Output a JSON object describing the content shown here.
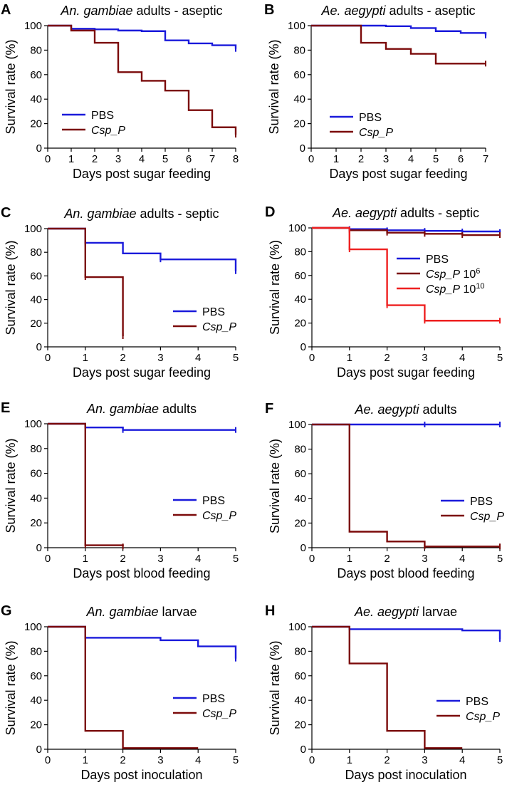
{
  "colors": {
    "PBS": "#1a1adb",
    "Csp_P": "#7b0a0a",
    "Csp_P_1e10": "#ee2020",
    "axis": "#000000"
  },
  "chart_data": [
    {
      "panel": "A",
      "type": "line",
      "step": true,
      "title": {
        "italic": "An. gambiae",
        "plain": " adults - aseptic"
      },
      "xlabel": "Days post sugar feeding",
      "ylabel": "Survival rate (%)",
      "xlim": [
        0,
        8
      ],
      "ylim": [
        0,
        100
      ],
      "xticks": [
        "0",
        "1",
        "2",
        "3",
        "4",
        "5",
        "6",
        "7",
        "8"
      ],
      "yticks": [
        "0",
        "20",
        "40",
        "60",
        "80",
        "100"
      ],
      "legend_position": "bottom-left",
      "series": [
        {
          "name": "PBS",
          "color": "PBS",
          "x": [
            0,
            1,
            2,
            3,
            4,
            5,
            6,
            7,
            8
          ],
          "y": [
            100,
            97.5,
            97,
            96,
            95.5,
            88,
            85.5,
            84,
            81
          ],
          "censor": [
            8
          ]
        },
        {
          "name": "Csp_P",
          "label_italic": "Csp_P",
          "label_plain": "",
          "color": "Csp_P",
          "x": [
            0,
            1,
            2,
            3,
            4,
            5,
            6,
            7,
            8
          ],
          "y": [
            100,
            96,
            86,
            62,
            55,
            47,
            31,
            17,
            11
          ],
          "censor": [
            8
          ]
        }
      ]
    },
    {
      "panel": "B",
      "type": "line",
      "step": true,
      "title": {
        "italic": "Ae. aegypti",
        "plain": " adults - aseptic"
      },
      "xlabel": "Days post sugar feeding",
      "ylabel": "Survival rate (%)",
      "xlim": [
        0,
        7
      ],
      "ylim": [
        0,
        100
      ],
      "xticks": [
        "0",
        "1",
        "2",
        "3",
        "4",
        "5",
        "6",
        "7"
      ],
      "yticks": [
        "0",
        "20",
        "40",
        "60",
        "80",
        "100"
      ],
      "legend_position": "bottom-left",
      "series": [
        {
          "name": "PBS",
          "color": "PBS",
          "x": [
            0,
            3,
            4,
            5,
            6,
            7
          ],
          "y": [
            100,
            99.5,
            98,
            95.5,
            94,
            92
          ],
          "censor": [
            7
          ]
        },
        {
          "name": "Csp_P",
          "label_italic": "Csp_P",
          "label_plain": "",
          "color": "Csp_P",
          "x": [
            0,
            2,
            3,
            4,
            5,
            7
          ],
          "y": [
            100,
            86,
            81,
            77,
            69,
            69
          ],
          "censor": [
            7
          ]
        }
      ]
    },
    {
      "panel": "C",
      "type": "line",
      "step": true,
      "title": {
        "italic": "An. gambiae",
        "plain": " adults - septic"
      },
      "xlabel": "Days post sugar feeding",
      "ylabel": "Survival rate (%)",
      "xlim": [
        0,
        5
      ],
      "ylim": [
        0,
        100
      ],
      "xticks": [
        "0",
        "1",
        "2",
        "3",
        "4",
        "5"
      ],
      "yticks": [
        "0",
        "20",
        "40",
        "60",
        "80",
        "100"
      ],
      "legend_position": "bottom-right",
      "series": [
        {
          "name": "PBS",
          "color": "PBS",
          "x": [
            0,
            1,
            2,
            3,
            5
          ],
          "y": [
            100,
            88,
            79,
            74,
            64
          ],
          "censor": [
            1,
            3,
            5
          ]
        },
        {
          "name": "Csp_P",
          "label_italic": "Csp_P",
          "label_plain": "",
          "color": "Csp_P",
          "x": [
            0,
            1,
            2
          ],
          "y": [
            100,
            59,
            9
          ],
          "censor": [
            1,
            2
          ]
        }
      ]
    },
    {
      "panel": "D",
      "type": "line",
      "step": true,
      "title": {
        "italic": "Ae. aegypti",
        "plain": " adults - septic"
      },
      "xlabel": "Days post sugar feeding",
      "ylabel": "Survival rate (%)",
      "xlim": [
        0,
        5
      ],
      "ylim": [
        0,
        100
      ],
      "xticks": [
        "0",
        "1",
        "2",
        "3",
        "4",
        "5"
      ],
      "yticks": [
        "0",
        "20",
        "40",
        "60",
        "80",
        "100"
      ],
      "legend_position": "center-right",
      "series": [
        {
          "name": "PBS",
          "color": "PBS",
          "x": [
            0,
            1,
            2,
            3,
            4,
            5
          ],
          "y": [
            100,
            99,
            98,
            97.5,
            97,
            96.5
          ],
          "censor": [
            1,
            2,
            3,
            4,
            5
          ]
        },
        {
          "name": "Csp_P 10^6",
          "label_italic": "Csp_P",
          "label_plain": " 10",
          "label_sup": "6",
          "color": "Csp_P",
          "x": [
            0,
            1,
            2,
            3,
            4,
            5
          ],
          "y": [
            100,
            98,
            96,
            95,
            94,
            94
          ],
          "censor": [
            1,
            2,
            3,
            4,
            5
          ]
        },
        {
          "name": "Csp_P 10^10",
          "label_italic": "Csp_P",
          "label_plain": " 10",
          "label_sup": "10",
          "color": "Csp_P_1e10",
          "x": [
            0,
            1,
            2,
            3,
            5
          ],
          "y": [
            100,
            82,
            35,
            22,
            22
          ],
          "censor": [
            1,
            2,
            3,
            5
          ]
        }
      ]
    },
    {
      "panel": "E",
      "type": "line",
      "step": true,
      "title": {
        "italic": "An. gambiae",
        "plain": " adults"
      },
      "xlabel": "Days post blood feeding",
      "ylabel": "Survival rate (%)",
      "xlim": [
        0,
        5
      ],
      "ylim": [
        0,
        100
      ],
      "xticks": [
        "0",
        "1",
        "2",
        "3",
        "4",
        "5"
      ],
      "yticks": [
        "0",
        "20",
        "40",
        "60",
        "80",
        "100"
      ],
      "legend_position": "bottom-right",
      "series": [
        {
          "name": "PBS",
          "color": "PBS",
          "x": [
            0,
            1,
            2,
            5
          ],
          "y": [
            100,
            97,
            95,
            95
          ],
          "censor": [
            2,
            5
          ]
        },
        {
          "name": "Csp_P",
          "label_italic": "Csp_P",
          "label_plain": "",
          "color": "Csp_P",
          "x": [
            0,
            1,
            2
          ],
          "y": [
            100,
            2,
            1
          ],
          "censor": [
            1,
            2
          ]
        }
      ]
    },
    {
      "panel": "F",
      "type": "line",
      "step": true,
      "title": {
        "italic": "Ae. aegypti",
        "plain": " adults"
      },
      "xlabel": "Days post blood feeding",
      "ylabel": "Survival rate (%)",
      "xlim": [
        0,
        5
      ],
      "ylim": [
        0,
        100
      ],
      "xticks": [
        "0",
        "1",
        "2",
        "3",
        "4",
        "5"
      ],
      "yticks": [
        "0",
        "20",
        "40",
        "60",
        "80",
        "100"
      ],
      "legend_position": "center-right",
      "series": [
        {
          "name": "PBS",
          "color": "PBS",
          "x": [
            0,
            5
          ],
          "y": [
            100,
            100
          ],
          "censor": [
            3,
            5
          ]
        },
        {
          "name": "Csp_P",
          "label_italic": "Csp_P",
          "label_plain": "",
          "color": "Csp_P",
          "x": [
            0,
            1,
            2,
            3,
            5
          ],
          "y": [
            100,
            13,
            5,
            1,
            1
          ],
          "censor": [
            3,
            5
          ]
        }
      ]
    },
    {
      "panel": "G",
      "type": "line",
      "step": true,
      "title": {
        "italic": "An. gambiae",
        "plain": " larvae"
      },
      "xlabel": "Days post inoculation",
      "ylabel": "Survival rate (%)",
      "xlim": [
        0,
        5
      ],
      "ylim": [
        0,
        100
      ],
      "xticks": [
        "0",
        "1",
        "2",
        "3",
        "4",
        "5"
      ],
      "yticks": [
        "0",
        "20",
        "40",
        "60",
        "80",
        "100"
      ],
      "legend_position": "bottom-right",
      "series": [
        {
          "name": "PBS",
          "color": "PBS",
          "x": [
            0,
            1,
            3,
            4,
            5
          ],
          "y": [
            100,
            91,
            89,
            84,
            74
          ],
          "censor": [
            5
          ]
        },
        {
          "name": "Csp_P",
          "label_italic": "Csp_P",
          "label_plain": "",
          "color": "Csp_P",
          "x": [
            0,
            1,
            2,
            4
          ],
          "y": [
            100,
            15,
            1,
            1
          ],
          "censor": []
        }
      ]
    },
    {
      "panel": "H",
      "type": "line",
      "step": true,
      "title": {
        "italic": "Ae. aegypti",
        "plain": " larvae"
      },
      "xlabel": "Days post inoculation",
      "ylabel": "Survival rate (%)",
      "xlim": [
        0,
        5
      ],
      "ylim": [
        0,
        100
      ],
      "xticks": [
        "0",
        "1",
        "2",
        "3",
        "4",
        "5"
      ],
      "yticks": [
        "0",
        "20",
        "40",
        "60",
        "80",
        "100"
      ],
      "legend_position": "bottom-right",
      "series": [
        {
          "name": "PBS",
          "color": "PBS",
          "x": [
            0,
            1,
            4,
            5
          ],
          "y": [
            100,
            98,
            97,
            90
          ],
          "censor": [
            5
          ]
        },
        {
          "name": "Csp_P",
          "label_italic": "Csp_P",
          "label_plain": "",
          "color": "Csp_P",
          "x": [
            0,
            1,
            2,
            3,
            4
          ],
          "y": [
            100,
            70,
            15,
            1,
            1
          ],
          "censor": []
        }
      ]
    }
  ]
}
